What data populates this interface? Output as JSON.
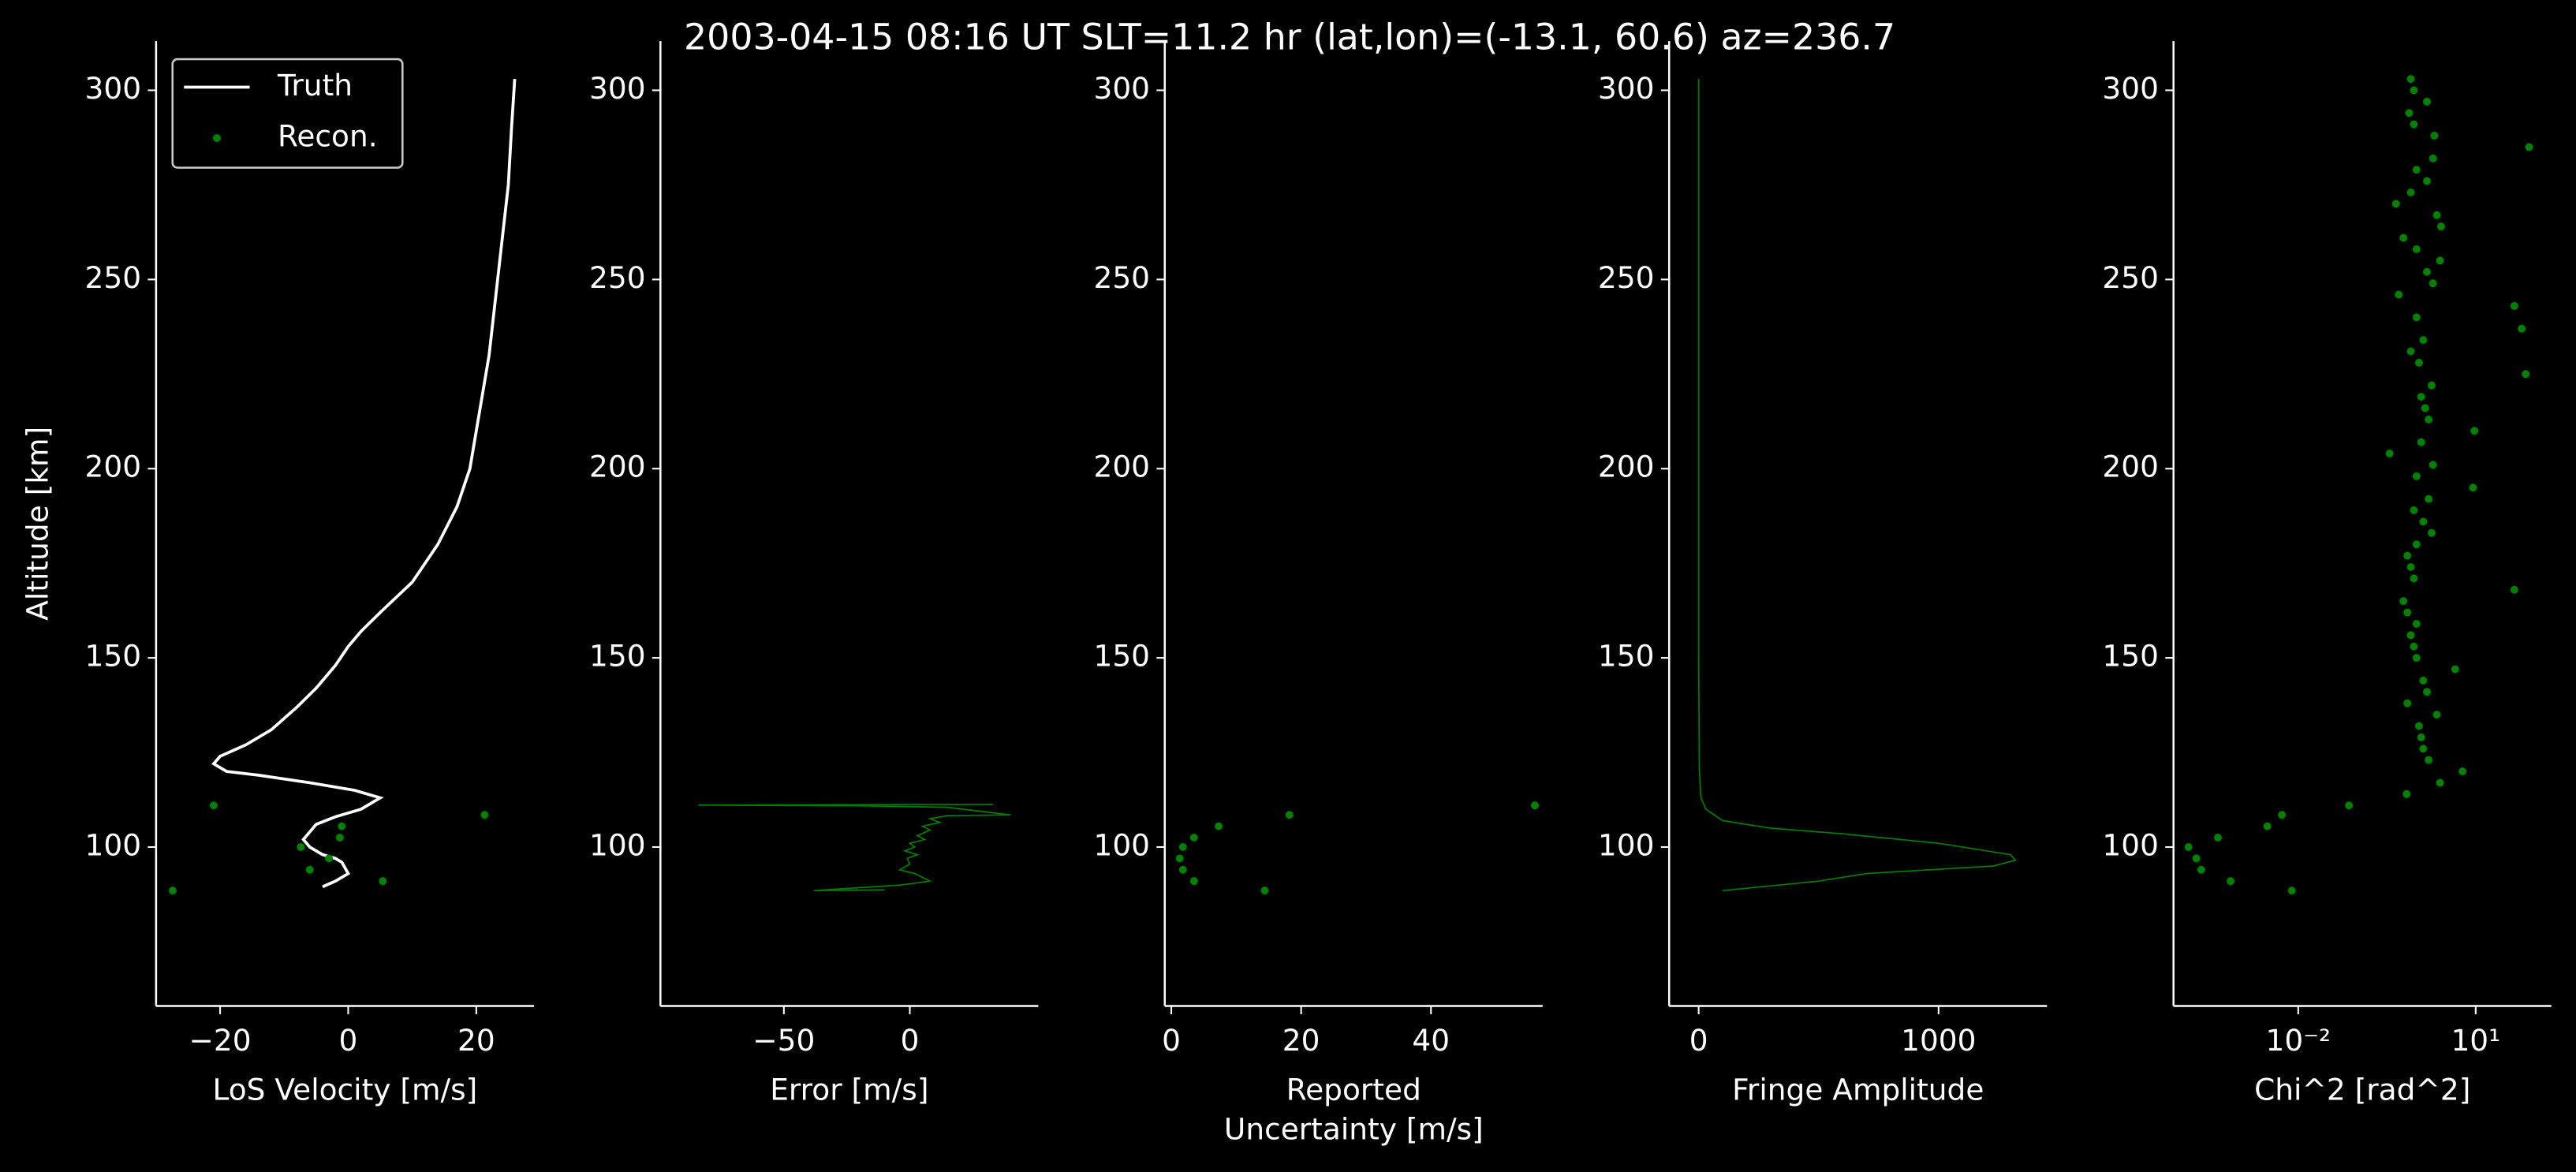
{
  "title": "2003-04-15 08:16 UT     SLT=11.2 hr      (lat,lon)=(-13.1, 60.6)      az=236.7",
  "chart_data": [
    {
      "type": "line",
      "ylabel": "Altitude [km]",
      "xlabel": [
        "LoS Velocity [m/s]"
      ],
      "xlim": [
        -30,
        29
      ],
      "ylim": [
        58,
        313
      ],
      "xticks": [
        {
          "value": -20,
          "label": "−20"
        },
        0,
        20
      ],
      "yticks": [
        100,
        150,
        200,
        250,
        300
      ],
      "legend": "upper left",
      "series": [
        {
          "name": "Truth",
          "color": "#ffffff",
          "x": [
            26,
            25.5,
            25,
            24,
            23,
            22,
            20.5,
            19,
            17,
            14,
            10,
            5,
            2,
            0,
            -2,
            -5,
            -8,
            -12,
            -16,
            -20,
            -21,
            -19,
            -14,
            -6,
            1,
            5,
            4,
            2,
            -2,
            -5,
            -6,
            -7,
            -6,
            -4,
            -2,
            -1,
            0,
            -2,
            -4
          ],
          "y": [
            303,
            290,
            275,
            260,
            245,
            230,
            215,
            200,
            190,
            180,
            170,
            162,
            157,
            153,
            148,
            142,
            137,
            131,
            127,
            124,
            122,
            120,
            119,
            117,
            115,
            113,
            112,
            110,
            108,
            106,
            104,
            102,
            100,
            98,
            97,
            96,
            93,
            91,
            89.5
          ]
        },
        {
          "name": "Recon.",
          "color": "#008000",
          "type": "scatter",
          "x": [
            -21,
            21.3,
            -1,
            -1.3,
            -7.4,
            -3,
            -6,
            5.4,
            -27.4
          ],
          "y": [
            111,
            108.5,
            105.5,
            102.5,
            100,
            97,
            94,
            91,
            88.5
          ]
        }
      ]
    },
    {
      "type": "line",
      "xlabel": [
        "Error [m/s]"
      ],
      "xlim": [
        -99,
        51
      ],
      "ylim": [
        58,
        313
      ],
      "xticks": [
        {
          "value": -50,
          "label": "−50"
        },
        0
      ],
      "yticks": [
        100,
        150,
        200,
        250,
        300
      ],
      "series": [
        {
          "color": "#008000",
          "x": [
            33,
            -84,
            -20,
            15,
            40,
            15,
            8,
            12,
            5,
            8,
            3,
            6,
            0,
            2,
            -2,
            3,
            -1,
            0,
            -4,
            2,
            8,
            -3,
            -38,
            -10
          ],
          "y": [
            111.3,
            111.1,
            110.9,
            110.5,
            108.5,
            108.3,
            107.5,
            106.5,
            105.5,
            104.5,
            103,
            102,
            101,
            100,
            99,
            98,
            97,
            95.5,
            94,
            93,
            91,
            90,
            88.5,
            88.7
          ]
        }
      ]
    },
    {
      "type": "scatter",
      "xlabel": [
        "Reported",
        "Uncertainty [m/s]"
      ],
      "xlim": [
        -1,
        57.2
      ],
      "ylim": [
        58,
        313
      ],
      "xticks": [
        0,
        20,
        40
      ],
      "yticks": [
        100,
        150,
        200,
        250,
        300
      ],
      "series": [
        {
          "color": "#008000",
          "x": [
            56,
            18.2,
            7.3,
            3.5,
            1.8,
            1.3,
            1.8,
            3.5,
            14.4
          ],
          "y": [
            111,
            108.5,
            105.5,
            102.5,
            100,
            97,
            94,
            91,
            88.5
          ]
        }
      ]
    },
    {
      "type": "line",
      "xlabel": [
        "Fringe Amplitude"
      ],
      "xlim": [
        -123,
        1452
      ],
      "ylim": [
        58,
        313
      ],
      "xticks": [
        0,
        1000
      ],
      "yticks": [
        100,
        150,
        200,
        250,
        300
      ],
      "series": [
        {
          "color": "#008000",
          "x": [
            0,
            0,
            0,
            3,
            10,
            30,
            100,
            300,
            600,
            1000,
            1300,
            1320,
            1230,
            700,
            500,
            100
          ],
          "y": [
            303,
            200,
            150,
            120,
            113,
            110,
            107,
            105,
            103.5,
            101,
            98,
            96.5,
            95,
            93,
            91,
            88.5
          ]
        }
      ]
    },
    {
      "type": "scatter",
      "xlabel": [
        "Chi^2 [rad^2]"
      ],
      "xscale": "log",
      "xlim": [
        7.8e-05,
        190
      ],
      "ylim": [
        58,
        313
      ],
      "xticks": [
        {
          "value": 0.01,
          "label": "10⁻²"
        },
        {
          "value": 10,
          "label": "10¹"
        }
      ],
      "yticks": [
        100,
        150,
        200,
        250,
        300
      ],
      "series": [
        {
          "color": "#008000",
          "x": [
            0.0078,
            0.00072,
            0.00023,
            0.00019,
            0.00014,
            0.00044,
            0.003,
            0.0053,
            0.072,
            0.68,
            2.5,
            6.0,
            1.6,
            1.3,
            1.2,
            1.1,
            2.2,
            0.7,
            1.5,
            1.3,
            4.5,
            1.0,
            0.9,
            0.8,
            1.0,
            0.7,
            0.6,
            45,
            0.9,
            0.8,
            0.7,
            1.0,
            1.8,
            1.3,
            0.9,
            1.6,
            9.0,
            1.0,
            1.9,
            0.35,
            1.2,
            9.5,
            1.6,
            1.4,
            1.2,
            1.8,
            70,
            1.1,
            0.8,
            1.3,
            60,
            1.0,
            45,
            0.5,
            1.9,
            1.5,
            2.5,
            1.0,
            0.6,
            2.6,
            2.2,
            0.45,
            0.8,
            1.5,
            1.0,
            1.9,
            80,
            2.0,
            0.9,
            0.75,
            1.5,
            0.9,
            0.8
          ],
          "y": [
            88.5,
            91,
            94,
            97,
            100,
            102.5,
            105.5,
            108.5,
            111,
            114,
            117,
            120,
            123,
            126,
            129,
            132,
            135,
            138,
            141,
            144,
            147,
            150,
            153,
            156,
            159,
            162,
            165,
            168,
            171,
            174,
            177,
            180,
            183,
            186,
            189,
            192,
            195,
            198,
            201,
            204,
            207,
            210,
            213,
            216,
            219,
            222,
            225,
            228,
            231,
            234,
            237,
            240,
            243,
            246,
            249,
            252,
            255,
            258,
            261,
            264,
            267,
            270,
            273,
            276,
            279,
            282,
            285,
            288,
            291,
            294,
            297,
            300,
            303
          ]
        }
      ]
    }
  ]
}
